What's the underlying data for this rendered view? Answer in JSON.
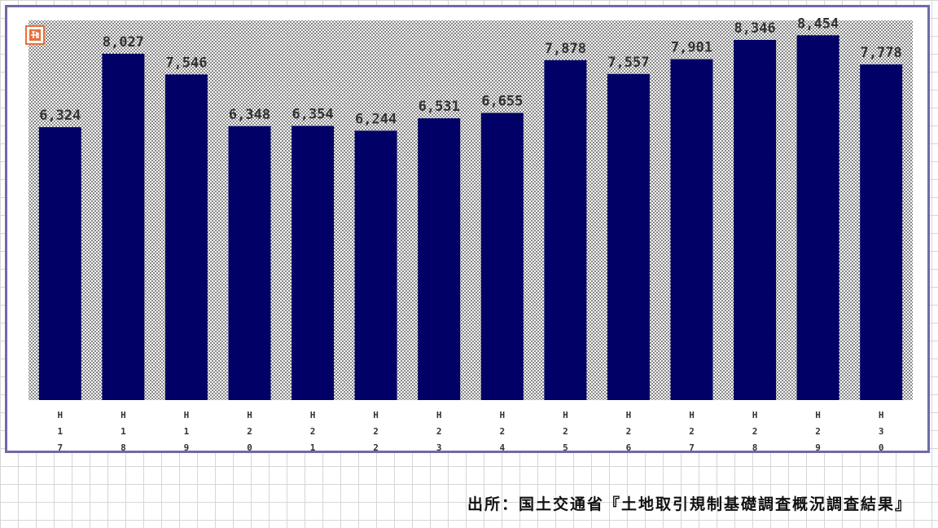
{
  "chart_data": {
    "type": "bar",
    "categories": [
      "H17",
      "H18",
      "H19",
      "H20",
      "H21",
      "H22",
      "H23",
      "H24",
      "H25",
      "H26",
      "H27",
      "H28",
      "H29",
      "H30"
    ],
    "values": [
      6324,
      8027,
      7546,
      6348,
      6354,
      6244,
      6531,
      6655,
      7878,
      7557,
      7901,
      8346,
      8454,
      7778
    ],
    "value_labels": [
      "6,324",
      "8,027",
      "7,546",
      "6,348",
      "6,354",
      "6,244",
      "6,531",
      "6,655",
      "7,878",
      "7,557",
      "7,901",
      "8,346",
      "8,454",
      "7,778"
    ],
    "title": "",
    "xlabel": "",
    "ylabel": "",
    "ylim": [
      0,
      8800
    ],
    "grid": false,
    "legend": "none",
    "bar_color": "#000066",
    "frame_color": "#6f6aa6",
    "badge_color": "#e8703a",
    "badge_icon": "new-badge-icon"
  },
  "source_note": "出所：国土交通省『土地取引規制基礎調査概況調査結果』"
}
